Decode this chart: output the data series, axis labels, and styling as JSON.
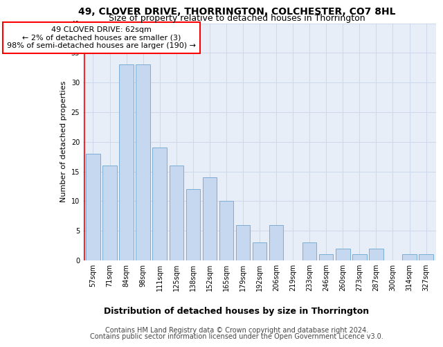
{
  "title": "49, CLOVER DRIVE, THORRINGTON, COLCHESTER, CO7 8HL",
  "subtitle": "Size of property relative to detached houses in Thorrington",
  "xlabel": "Distribution of detached houses by size in Thorrington",
  "ylabel": "Number of detached properties",
  "categories": [
    "57sqm",
    "71sqm",
    "84sqm",
    "98sqm",
    "111sqm",
    "125sqm",
    "138sqm",
    "152sqm",
    "165sqm",
    "179sqm",
    "192sqm",
    "206sqm",
    "219sqm",
    "233sqm",
    "246sqm",
    "260sqm",
    "273sqm",
    "287sqm",
    "300sqm",
    "314sqm",
    "327sqm"
  ],
  "values": [
    18,
    16,
    33,
    33,
    19,
    16,
    12,
    14,
    10,
    6,
    3,
    6,
    0,
    3,
    1,
    2,
    1,
    2,
    0,
    1,
    1
  ],
  "bar_color": "#c5d8f0",
  "bar_edge_color": "#7aaed6",
  "annotation_line1": "49 CLOVER DRIVE: 62sqm",
  "annotation_line2": "← 2% of detached houses are smaller (3)",
  "annotation_line3": "98% of semi-detached houses are larger (190) →",
  "annotation_box_color": "white",
  "annotation_box_edge_color": "red",
  "grid_color": "#c8d4e8",
  "background_color": "#e8eef8",
  "ylim": [
    0,
    40
  ],
  "yticks": [
    0,
    5,
    10,
    15,
    20,
    25,
    30,
    35,
    40
  ],
  "footer1": "Contains HM Land Registry data © Crown copyright and database right 2024.",
  "footer2": "Contains public sector information licensed under the Open Government Licence v3.0.",
  "title_fontsize": 10,
  "subtitle_fontsize": 9,
  "xlabel_fontsize": 9,
  "ylabel_fontsize": 8,
  "tick_fontsize": 7,
  "annotation_fontsize": 8,
  "footer_fontsize": 7
}
